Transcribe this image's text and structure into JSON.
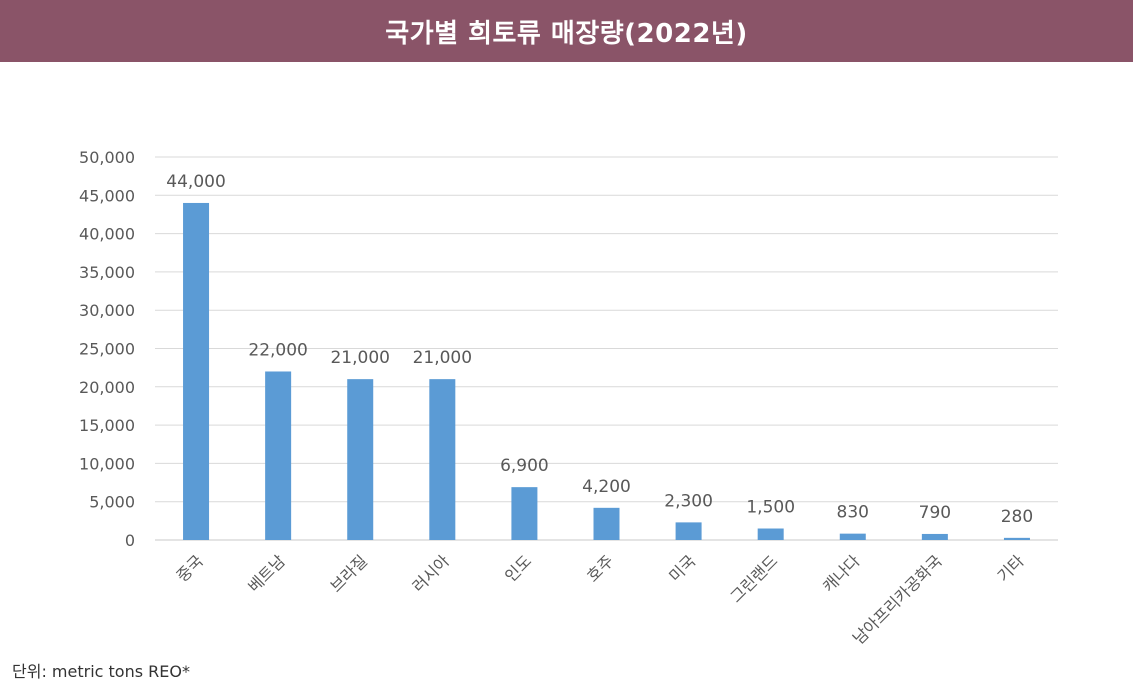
{
  "chart_data": {
    "type": "bar",
    "title": "국가별 희토류 매장량(2022년)",
    "categories": [
      "중국",
      "베트남",
      "브라질",
      "러시아",
      "인도",
      "호주",
      "미국",
      "그린랜드",
      "캐나다",
      "남아프리카공화국",
      "기타"
    ],
    "values": [
      44000,
      22000,
      21000,
      21000,
      6900,
      4200,
      2300,
      1500,
      830,
      790,
      280
    ],
    "data_labels": [
      "44,000",
      "22,000",
      "21,000",
      "21,000",
      "6,900",
      "4,200",
      "2,300",
      "1,500",
      "830",
      "790",
      "280"
    ],
    "y_ticks": [
      "0",
      "5,000",
      "10,000",
      "15,000",
      "20,000",
      "25,000",
      "30,000",
      "35,000",
      "40,000",
      "45,000",
      "50,000"
    ],
    "ylim": [
      0,
      50000
    ],
    "grid": true,
    "legend": "none",
    "bar_color": "#5b9bd5",
    "title_bg": "#8a5468"
  },
  "footnote": "단위: metric tons REO*"
}
